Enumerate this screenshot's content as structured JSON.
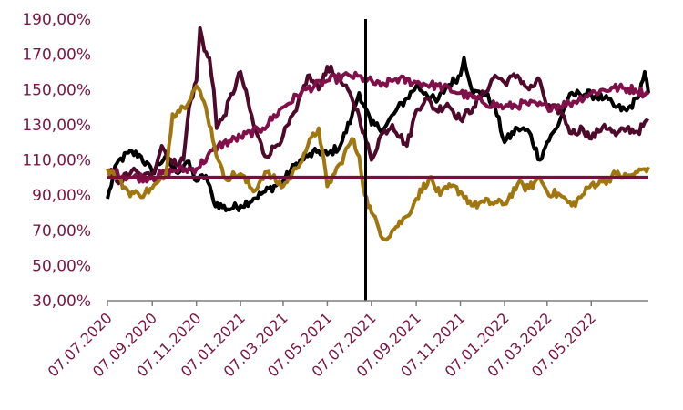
{
  "chart_data": {
    "type": "line",
    "title": "",
    "xlabel": "",
    "ylabel": "",
    "x_range": [
      "2020-07-07",
      "2022-07-25"
    ],
    "ylim": [
      30,
      190
    ],
    "y_ticks": [
      30,
      50,
      70,
      90,
      110,
      130,
      150,
      170,
      190
    ],
    "y_tick_labels": [
      "30,00%",
      "50,00%",
      "70,00%",
      "90,00%",
      "110,00%",
      "130,00%",
      "150,00%",
      "170,00%",
      "190,00%"
    ],
    "x_ticks": [
      "2020-07-07",
      "2020-09-07",
      "2020-11-07",
      "2021-01-07",
      "2021-03-07",
      "2021-05-07",
      "2021-07-07",
      "2021-09-07",
      "2021-11-07",
      "2022-01-07",
      "2022-03-07",
      "2022-05-07"
    ],
    "x_tick_labels": [
      "07.07.2020",
      "07.09.2020",
      "07.11.2020",
      "07.01.2021",
      "07.03.2021",
      "07.05.2021",
      "07.07.2021",
      "07.09.2021",
      "07.11.2021",
      "07.01.2022",
      "07.03.2022",
      "07.05.2022"
    ],
    "grid": false,
    "legend": "none",
    "reference_line": {
      "y": 100,
      "color": "#7a0f3e"
    },
    "vertical_marker": {
      "x": "2021-06-29",
      "color": "#000000"
    },
    "series": [
      {
        "color": "#000000",
        "points": [
          [
            "2020-07-07",
            88
          ],
          [
            "2020-07-20",
            108
          ],
          [
            "2020-08-05",
            114
          ],
          [
            "2020-08-20",
            113
          ],
          [
            "2020-09-07",
            103
          ],
          [
            "2020-09-25",
            112
          ],
          [
            "2020-10-10",
            103
          ],
          [
            "2020-10-25",
            109
          ],
          [
            "2020-11-07",
            98
          ],
          [
            "2020-11-20",
            101
          ],
          [
            "2020-12-01",
            86
          ],
          [
            "2020-12-20",
            82
          ],
          [
            "2021-01-07",
            84
          ],
          [
            "2021-01-25",
            88
          ],
          [
            "2021-02-10",
            92
          ],
          [
            "2021-03-07",
            98
          ],
          [
            "2021-03-25",
            108
          ],
          [
            "2021-04-10",
            112
          ],
          [
            "2021-04-25",
            115
          ],
          [
            "2021-05-07",
            113
          ],
          [
            "2021-05-25",
            118
          ],
          [
            "2021-06-10",
            135
          ],
          [
            "2021-06-20",
            148
          ],
          [
            "2021-06-28",
            140
          ],
          [
            "2021-07-07",
            130
          ],
          [
            "2021-07-25",
            128
          ],
          [
            "2021-08-10",
            138
          ],
          [
            "2021-08-25",
            145
          ],
          [
            "2021-09-07",
            152
          ],
          [
            "2021-09-20",
            148
          ],
          [
            "2021-10-05",
            143
          ],
          [
            "2021-10-20",
            152
          ],
          [
            "2021-11-07",
            158
          ],
          [
            "2021-11-12",
            168
          ],
          [
            "2021-11-25",
            148
          ],
          [
            "2021-12-10",
            148
          ],
          [
            "2021-12-25",
            140
          ],
          [
            "2022-01-07",
            120
          ],
          [
            "2022-01-25",
            128
          ],
          [
            "2022-02-10",
            126
          ],
          [
            "2022-02-25",
            110
          ],
          [
            "2022-03-07",
            120
          ],
          [
            "2022-03-20",
            128
          ],
          [
            "2022-04-05",
            145
          ],
          [
            "2022-04-20",
            148
          ],
          [
            "2022-05-07",
            147
          ],
          [
            "2022-05-25",
            145
          ],
          [
            "2022-06-10",
            140
          ],
          [
            "2022-06-25",
            138
          ],
          [
            "2022-07-10",
            145
          ],
          [
            "2022-07-20",
            160
          ],
          [
            "2022-07-25",
            148
          ]
        ]
      },
      {
        "color": "#4d0a2a",
        "points": [
          [
            "2020-07-07",
            102
          ],
          [
            "2020-07-25",
            98
          ],
          [
            "2020-08-10",
            104
          ],
          [
            "2020-08-25",
            100
          ],
          [
            "2020-09-07",
            102
          ],
          [
            "2020-09-20",
            118
          ],
          [
            "2020-10-05",
            108
          ],
          [
            "2020-10-20",
            110
          ],
          [
            "2020-10-28",
            140
          ],
          [
            "2020-11-07",
            155
          ],
          [
            "2020-11-12",
            185
          ],
          [
            "2020-11-18",
            172
          ],
          [
            "2020-11-25",
            168
          ],
          [
            "2020-12-01",
            150
          ],
          [
            "2020-12-05",
            128
          ],
          [
            "2020-12-15",
            135
          ],
          [
            "2021-01-07",
            160
          ],
          [
            "2021-01-25",
            130
          ],
          [
            "2021-02-10",
            112
          ],
          [
            "2021-02-25",
            118
          ],
          [
            "2021-03-07",
            124
          ],
          [
            "2021-03-25",
            138
          ],
          [
            "2021-04-10",
            158
          ],
          [
            "2021-04-25",
            150
          ],
          [
            "2021-05-07",
            163
          ],
          [
            "2021-05-25",
            155
          ],
          [
            "2021-06-10",
            145
          ],
          [
            "2021-06-20",
            135
          ],
          [
            "2021-07-07",
            110
          ],
          [
            "2021-07-20",
            124
          ],
          [
            "2021-08-05",
            130
          ],
          [
            "2021-08-25",
            118
          ],
          [
            "2021-09-07",
            138
          ],
          [
            "2021-09-20",
            145
          ],
          [
            "2021-10-05",
            138
          ],
          [
            "2021-10-20",
            142
          ],
          [
            "2021-11-07",
            133
          ],
          [
            "2021-11-25",
            140
          ],
          [
            "2021-12-10",
            148
          ],
          [
            "2021-12-25",
            158
          ],
          [
            "2022-01-07",
            154
          ],
          [
            "2022-01-25",
            158
          ],
          [
            "2022-02-10",
            150
          ],
          [
            "2022-02-25",
            155
          ],
          [
            "2022-03-07",
            140
          ],
          [
            "2022-03-25",
            138
          ],
          [
            "2022-04-10",
            125
          ],
          [
            "2022-04-25",
            128
          ],
          [
            "2022-05-07",
            122
          ],
          [
            "2022-05-25",
            130
          ],
          [
            "2022-06-10",
            124
          ],
          [
            "2022-06-25",
            128
          ],
          [
            "2022-07-10",
            126
          ],
          [
            "2022-07-25",
            132
          ]
        ]
      },
      {
        "color": "#80104a",
        "points": [
          [
            "2020-07-07",
            104
          ],
          [
            "2020-08-07",
            100
          ],
          [
            "2020-09-07",
            100
          ],
          [
            "2020-10-07",
            104
          ],
          [
            "2020-11-07",
            105
          ],
          [
            "2020-12-07",
            118
          ],
          [
            "2021-01-07",
            123
          ],
          [
            "2021-02-07",
            128
          ],
          [
            "2021-03-07",
            140
          ],
          [
            "2021-04-07",
            150
          ],
          [
            "2021-05-07",
            155
          ],
          [
            "2021-06-07",
            158
          ],
          [
            "2021-06-28",
            156
          ],
          [
            "2021-07-20",
            152
          ],
          [
            "2021-08-10",
            156
          ],
          [
            "2021-09-07",
            154
          ],
          [
            "2021-10-07",
            152
          ],
          [
            "2021-11-07",
            148
          ],
          [
            "2021-12-07",
            143
          ],
          [
            "2022-01-07",
            140
          ],
          [
            "2022-02-07",
            142
          ],
          [
            "2022-03-07",
            140
          ],
          [
            "2022-04-07",
            142
          ],
          [
            "2022-05-07",
            148
          ],
          [
            "2022-06-07",
            151
          ],
          [
            "2022-07-07",
            150
          ],
          [
            "2022-07-25",
            147
          ]
        ]
      },
      {
        "color": "#a0770f",
        "points": [
          [
            "2020-07-07",
            105
          ],
          [
            "2020-07-20",
            100
          ],
          [
            "2020-08-05",
            92
          ],
          [
            "2020-08-20",
            90
          ],
          [
            "2020-09-07",
            94
          ],
          [
            "2020-09-25",
            100
          ],
          [
            "2020-10-05",
            136
          ],
          [
            "2020-10-20",
            140
          ],
          [
            "2020-11-07",
            152
          ],
          [
            "2020-11-20",
            140
          ],
          [
            "2020-12-07",
            110
          ],
          [
            "2020-12-15",
            100
          ],
          [
            "2021-01-07",
            102
          ],
          [
            "2021-01-25",
            92
          ],
          [
            "2021-02-10",
            103
          ],
          [
            "2021-03-07",
            95
          ],
          [
            "2021-03-25",
            105
          ],
          [
            "2021-04-10",
            118
          ],
          [
            "2021-04-25",
            128
          ],
          [
            "2021-05-07",
            95
          ],
          [
            "2021-05-25",
            108
          ],
          [
            "2021-06-10",
            122
          ],
          [
            "2021-06-20",
            112
          ],
          [
            "2021-06-28",
            90
          ],
          [
            "2021-07-07",
            80
          ],
          [
            "2021-07-25",
            65
          ],
          [
            "2021-08-10",
            72
          ],
          [
            "2021-08-25",
            78
          ],
          [
            "2021-09-07",
            88
          ],
          [
            "2021-09-25",
            100
          ],
          [
            "2021-10-10",
            90
          ],
          [
            "2021-10-25",
            95
          ],
          [
            "2021-11-07",
            92
          ],
          [
            "2021-11-25",
            84
          ],
          [
            "2021-12-10",
            86
          ],
          [
            "2022-01-07",
            85
          ],
          [
            "2022-01-25",
            96
          ],
          [
            "2022-02-10",
            94
          ],
          [
            "2022-02-25",
            100
          ],
          [
            "2022-03-07",
            92
          ],
          [
            "2022-03-25",
            90
          ],
          [
            "2022-04-10",
            84
          ],
          [
            "2022-04-25",
            90
          ],
          [
            "2022-05-07",
            96
          ],
          [
            "2022-05-25",
            98
          ],
          [
            "2022-06-10",
            102
          ],
          [
            "2022-06-25",
            100
          ],
          [
            "2022-07-10",
            103
          ],
          [
            "2022-07-25",
            106
          ]
        ]
      }
    ]
  }
}
